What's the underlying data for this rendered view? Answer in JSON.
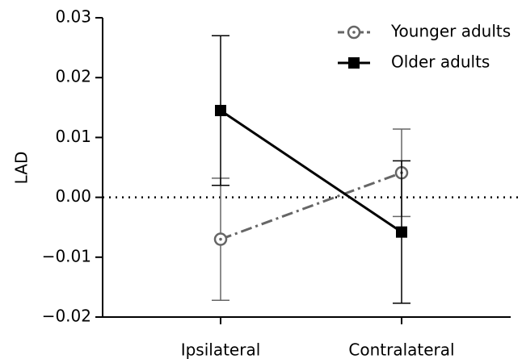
{
  "chart_data": {
    "type": "line",
    "ylabel": "LAD",
    "categories": [
      "Ipsilateral",
      "Contralateral"
    ],
    "series": [
      {
        "name": "Younger adults",
        "color": "#666666",
        "values": [
          -0.007,
          0.0041
        ],
        "errors": [
          0.0102,
          0.0073
        ]
      },
      {
        "name": "Older adults",
        "color": "#000000",
        "values": [
          0.0145,
          -0.0058
        ],
        "errors": [
          0.0125,
          0.0119
        ]
      }
    ],
    "ylim": [
      -0.02,
      0.03
    ],
    "yticks": [
      {
        "value": -0.02,
        "label": "−0.02"
      },
      {
        "value": -0.01,
        "label": "−0.01"
      },
      {
        "value": 0,
        "label": "0.00"
      },
      0.01,
      0.02,
      0.03
    ],
    "reference_line": 0,
    "legend": "upper right"
  }
}
